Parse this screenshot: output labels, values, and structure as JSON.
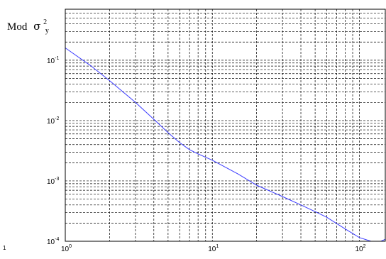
{
  "chart_data": {
    "type": "line",
    "xscale": "log",
    "yscale": "log",
    "xlim": [
      1,
      150
    ],
    "ylim": [
      0.0001,
      0.7
    ],
    "grid": true,
    "ylabel": {
      "prefix": "Mod",
      "symbol": "σ",
      "superscript": "2",
      "subscript": "y"
    },
    "x_ticks": [
      {
        "value": 1,
        "base": "10",
        "exp": "0"
      },
      {
        "value": 10,
        "base": "10",
        "exp": "1"
      },
      {
        "value": 100,
        "base": "10",
        "exp": "2"
      }
    ],
    "y_ticks": [
      {
        "value": 0.0001,
        "base": "10",
        "exp": "-4"
      },
      {
        "value": 0.001,
        "base": "10",
        "exp": "-3"
      },
      {
        "value": 0.01,
        "base": "10",
        "exp": "-2"
      },
      {
        "value": 0.1,
        "base": "10",
        "exp": "-1"
      }
    ],
    "corner_label": "1",
    "series": [
      {
        "color": "#3a3aff",
        "x": [
          1,
          1.5,
          2,
          3,
          4,
          5,
          6,
          7,
          8,
          10,
          15,
          20,
          30,
          40,
          50,
          60,
          80,
          100,
          120,
          140,
          150
        ],
        "y": [
          0.16,
          0.08,
          0.046,
          0.02,
          0.0105,
          0.0063,
          0.0043,
          0.0033,
          0.0028,
          0.0022,
          0.0013,
          0.00085,
          0.00055,
          0.0004,
          0.00031,
          0.00025,
          0.00016,
          0.000115,
          0.0001,
          0.0001,
          0.000108
        ]
      }
    ]
  }
}
